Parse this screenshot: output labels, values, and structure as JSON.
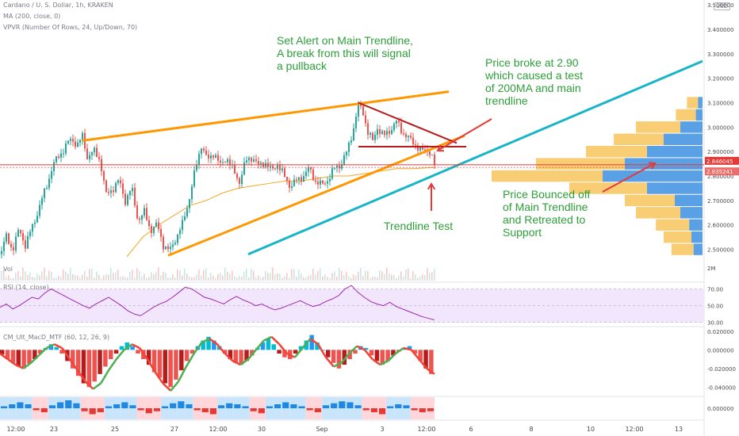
{
  "header": {
    "symbol": "Cardano / U. S. Dollar, 1h, KRAKEN",
    "ma": "MA (200, close, 0)",
    "vpvr": "VPVR (Number Of Rows, 24, Up/Down, 70)",
    "currency_button": "USD"
  },
  "colors": {
    "up": "#26a69a",
    "down": "#ef5350",
    "orange_trend": "#ff9800",
    "cyan_trend": "#18b4c8",
    "red_lines": "#b71c1c",
    "ma200": "#f5a623",
    "annotation_green": "#2e9e3a",
    "annotation_red": "#e53935",
    "rsi_line": "#9c27b0",
    "rsi_band": "#f1e6fb"
  },
  "chart_data": [
    {
      "type": "candlestick",
      "title": "Cardano / U. S. Dollar, 1h, KRAKEN",
      "x_tick_labels": [
        "12:00",
        "23",
        "25",
        "27",
        "12:00",
        "30",
        "Sep",
        "3",
        "12:00",
        "6",
        "8",
        "10",
        "12:00",
        "13"
      ],
      "y_tick_labels": [
        "3.500000",
        "3.400000",
        "3.300000",
        "3.200000",
        "3.100000",
        "3.000000",
        "2.900000",
        "2.800000",
        "2.700000",
        "2.600000",
        "2.500000"
      ],
      "ylim": [
        2.45,
        3.52
      ],
      "price_path": [
        [
          0,
          2.48
        ],
        [
          8,
          2.55
        ],
        [
          16,
          2.5
        ],
        [
          24,
          2.58
        ],
        [
          32,
          2.52
        ],
        [
          42,
          2.6
        ],
        [
          50,
          2.68
        ],
        [
          58,
          2.75
        ],
        [
          66,
          2.84
        ],
        [
          74,
          2.88
        ],
        [
          82,
          2.92
        ],
        [
          90,
          2.95
        ],
        [
          98,
          2.93
        ],
        [
          104,
          2.96
        ],
        [
          110,
          2.88
        ],
        [
          118,
          2.9
        ],
        [
          126,
          2.87
        ],
        [
          134,
          2.72
        ],
        [
          142,
          2.75
        ],
        [
          150,
          2.78
        ],
        [
          158,
          2.7
        ],
        [
          166,
          2.75
        ],
        [
          174,
          2.62
        ],
        [
          182,
          2.65
        ],
        [
          190,
          2.58
        ],
        [
          198,
          2.6
        ],
        [
          206,
          2.52
        ],
        [
          214,
          2.49
        ],
        [
          222,
          2.55
        ],
        [
          230,
          2.6
        ],
        [
          238,
          2.7
        ],
        [
          246,
          2.82
        ],
        [
          254,
          2.93
        ],
        [
          262,
          2.86
        ],
        [
          270,
          2.9
        ],
        [
          278,
          2.84
        ],
        [
          286,
          2.88
        ],
        [
          294,
          2.82
        ],
        [
          302,
          2.78
        ],
        [
          310,
          2.86
        ],
        [
          318,
          2.88
        ],
        [
          326,
          2.84
        ],
        [
          334,
          2.86
        ],
        [
          342,
          2.82
        ],
        [
          350,
          2.85
        ],
        [
          358,
          2.8
        ],
        [
          366,
          2.76
        ],
        [
          374,
          2.78
        ],
        [
          382,
          2.8
        ],
        [
          390,
          2.83
        ],
        [
          398,
          2.78
        ],
        [
          406,
          2.76
        ],
        [
          414,
          2.79
        ],
        [
          422,
          2.83
        ],
        [
          430,
          2.85
        ],
        [
          438,
          2.9
        ],
        [
          446,
          3.0
        ],
        [
          452,
          3.09
        ],
        [
          458,
          3.06
        ],
        [
          464,
          2.98
        ],
        [
          470,
          2.94
        ],
        [
          476,
          3.0
        ],
        [
          484,
          2.96
        ],
        [
          492,
          2.99
        ],
        [
          500,
          3.02
        ],
        [
          508,
          2.98
        ],
        [
          516,
          2.95
        ],
        [
          524,
          2.93
        ],
        [
          532,
          2.9
        ],
        [
          540,
          2.91
        ],
        [
          544,
          2.89
        ],
        [
          548,
          2.84
        ]
      ],
      "ma200_path": [
        [
          160,
          2.47
        ],
        [
          180,
          2.55
        ],
        [
          200,
          2.6
        ],
        [
          220,
          2.64
        ],
        [
          240,
          2.68
        ],
        [
          260,
          2.7
        ],
        [
          280,
          2.73
        ],
        [
          300,
          2.75
        ],
        [
          320,
          2.76
        ],
        [
          340,
          2.77
        ],
        [
          360,
          2.78
        ],
        [
          380,
          2.78
        ],
        [
          400,
          2.79
        ],
        [
          420,
          2.8
        ],
        [
          440,
          2.8
        ],
        [
          460,
          2.81
        ],
        [
          480,
          2.82
        ],
        [
          500,
          2.83
        ],
        [
          520,
          2.83
        ],
        [
          548,
          2.835
        ]
      ],
      "last_price_labels": [
        "2.846045",
        "2.835241"
      ],
      "last_prices": [
        2.846045,
        2.835241
      ],
      "volume_label": "Vol",
      "volume_axis_label": "2M",
      "volume_profile": {
        "rows": [
          {
            "price": 3.1,
            "up": 0.1,
            "down": 0.04
          },
          {
            "price": 3.05,
            "up": 0.18,
            "down": 0.06
          },
          {
            "price": 3.0,
            "up": 0.4,
            "down": 0.2
          },
          {
            "price": 2.95,
            "up": 0.45,
            "down": 0.35
          },
          {
            "price": 2.9,
            "up": 0.55,
            "down": 0.5
          },
          {
            "price": 2.85,
            "up": 0.8,
            "down": 0.7
          },
          {
            "price": 2.8,
            "up": 1.0,
            "down": 0.9
          },
          {
            "price": 2.75,
            "up": 0.7,
            "down": 0.5
          },
          {
            "price": 2.7,
            "up": 0.45,
            "down": 0.25
          },
          {
            "price": 2.65,
            "up": 0.4,
            "down": 0.2
          },
          {
            "price": 2.6,
            "up": 0.3,
            "down": 0.12
          },
          {
            "price": 2.55,
            "up": 0.25,
            "down": 0.1
          },
          {
            "price": 2.5,
            "up": 0.2,
            "down": 0.08
          }
        ]
      },
      "drawings": [
        {
          "name": "orange-upper-trendline",
          "from": [
            104,
            2.945
          ],
          "to": [
            566,
            3.145
          ]
        },
        {
          "name": "orange-lower-trendline",
          "from": [
            212,
            2.475
          ],
          "to": [
            586,
            2.965
          ]
        },
        {
          "name": "cyan-main-trendline",
          "from": [
            313,
            2.48
          ],
          "to": [
            886,
            3.27
          ]
        },
        {
          "name": "red-resistance-line",
          "from": [
            452,
            3.1
          ],
          "to": [
            576,
            2.935
          ]
        },
        {
          "name": "red-support-line",
          "from": [
            452,
            2.92
          ],
          "to": [
            588,
            2.92
          ]
        }
      ],
      "annotations": [
        {
          "name": "set-alert-text",
          "lines": [
            "Set Alert on Main Trendline,",
            "A break from this will signal",
            "a pullback"
          ]
        },
        {
          "name": "price-broke-text",
          "lines": [
            "Price broke at 2.90",
            "which caused a test",
            "of 200MA and main",
            "trendline"
          ]
        },
        {
          "name": "trendline-test-text",
          "lines": [
            "Trendline Test"
          ]
        },
        {
          "name": "price-bounced-text",
          "lines": [
            "Price Bounced off",
            "of Main Trendline",
            "and Retreated to",
            "Support"
          ]
        }
      ]
    },
    {
      "type": "line",
      "title": "RSI (14, close)",
      "y_tick_labels": [
        "70.00",
        "50.00",
        "30.00"
      ],
      "ylim": [
        25,
        78
      ],
      "band": [
        30,
        70
      ],
      "values": [
        48,
        52,
        46,
        50,
        55,
        60,
        58,
        65,
        70,
        66,
        62,
        58,
        54,
        50,
        47,
        52,
        56,
        60,
        55,
        50,
        44,
        40,
        38,
        43,
        48,
        52,
        55,
        60,
        66,
        72,
        70,
        65,
        60,
        58,
        55,
        52,
        57,
        61,
        57,
        54,
        50,
        52,
        48,
        45,
        47,
        50,
        53,
        56,
        52,
        49,
        51,
        55,
        58,
        62,
        70,
        74,
        66,
        60,
        55,
        52,
        50,
        54,
        49,
        46,
        43,
        40,
        37,
        35,
        33
      ]
    },
    {
      "type": "bar",
      "title": "CM_Ult_MacD_MTF (60, 12, 26, 9)",
      "y_tick_labels": [
        "0.020000",
        "0.000000",
        "-0.020000",
        "-0.040000"
      ],
      "ylim": [
        -0.05,
        0.025
      ],
      "histogram": [
        -0.005,
        -0.01,
        -0.014,
        -0.018,
        -0.02,
        -0.015,
        -0.01,
        -0.004,
        0.002,
        0.006,
        0.003,
        -0.004,
        -0.012,
        -0.02,
        -0.028,
        -0.036,
        -0.04,
        -0.034,
        -0.026,
        -0.018,
        -0.01,
        -0.004,
        0.004,
        0.008,
        0.004,
        -0.004,
        -0.01,
        -0.016,
        -0.024,
        -0.03,
        -0.036,
        -0.04,
        -0.032,
        -0.022,
        -0.012,
        -0.004,
        0.004,
        0.01,
        0.014,
        0.01,
        0.004,
        -0.004,
        -0.01,
        -0.014,
        -0.016,
        -0.012,
        -0.006,
        0.002,
        0.008,
        0.012,
        0.006,
        -0.004,
        -0.008,
        -0.01,
        -0.004,
        0.004,
        0.01,
        0.016,
        0.008,
        0.0,
        -0.008,
        -0.014,
        -0.02,
        -0.016,
        -0.01,
        -0.004,
        0.004,
        0.002,
        -0.006,
        -0.012,
        -0.016,
        -0.012,
        -0.006,
        -0.002,
        0.002,
        0.004,
        -0.004,
        -0.012,
        -0.02,
        -0.026
      ],
      "macd_line": [
        -0.004,
        -0.01,
        -0.016,
        -0.02,
        -0.014,
        -0.006,
        0.002,
        0.006,
        0.002,
        -0.01,
        -0.022,
        -0.034,
        -0.042,
        -0.036,
        -0.022,
        -0.01,
        0.0,
        0.006,
        0.002,
        -0.01,
        -0.024,
        -0.036,
        -0.044,
        -0.034,
        -0.018,
        -0.004,
        0.008,
        0.012,
        0.006,
        -0.004,
        -0.012,
        -0.016,
        -0.01,
        0.0,
        0.01,
        0.014,
        0.006,
        -0.004,
        -0.008,
        0.002,
        0.012,
        0.006,
        -0.008,
        -0.018,
        -0.014,
        -0.004,
        0.004,
        0.0,
        -0.01,
        -0.016,
        -0.012,
        -0.004,
        0.002,
        0.0,
        -0.01,
        -0.02,
        -0.026
      ]
    },
    {
      "type": "bar",
      "title": "",
      "y_tick_labels": [
        "0.000000"
      ],
      "ylim": [
        -0.012,
        0.012
      ],
      "values": [
        0.002,
        0.004,
        0.006,
        0.004,
        -0.002,
        -0.004,
        0.003,
        0.006,
        0.008,
        0.005,
        -0.003,
        -0.006,
        -0.004,
        0.002,
        0.004,
        0.006,
        0.003,
        -0.002,
        -0.005,
        -0.003,
        0.002,
        0.005,
        0.007,
        0.004,
        -0.002,
        -0.004,
        -0.006,
        0.003,
        0.005,
        0.004,
        0.002,
        -0.003,
        -0.005,
        0.002,
        0.004,
        0.006,
        0.004,
        0.002,
        -0.002,
        -0.004,
        0.003,
        0.005,
        0.007,
        0.006,
        0.003,
        -0.002,
        -0.004,
        -0.006,
        0.002,
        0.004,
        0.003,
        -0.002,
        -0.004,
        -0.003
      ]
    }
  ]
}
